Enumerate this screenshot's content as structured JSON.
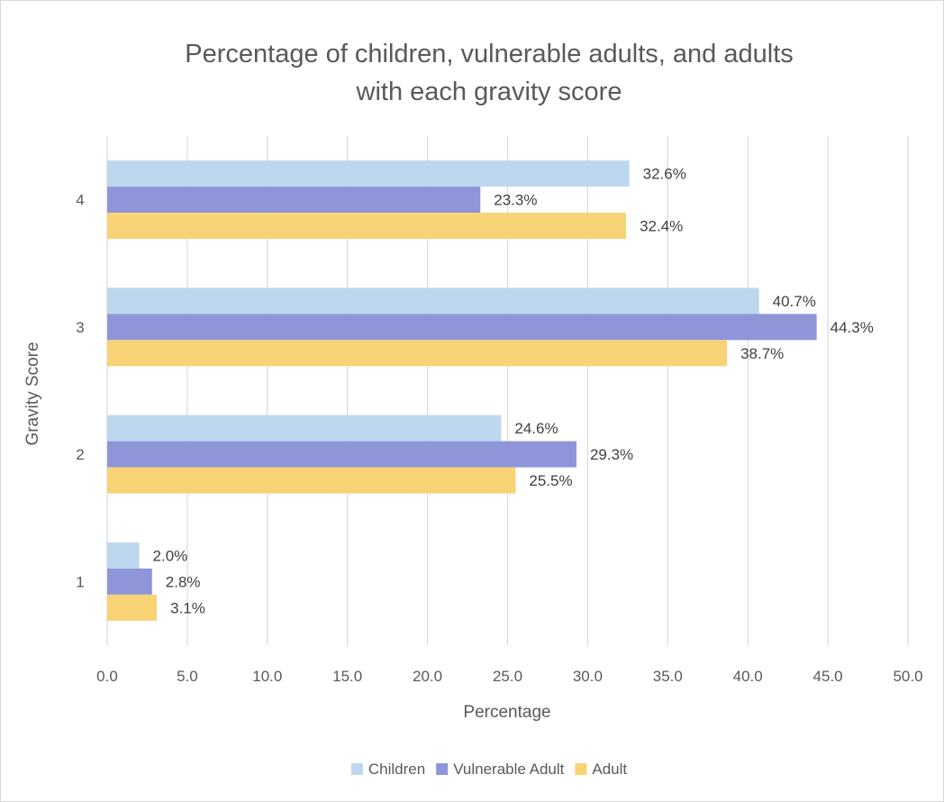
{
  "chart_data": {
    "type": "bar",
    "orientation": "horizontal",
    "title": "Percentage of children, vulnerable adults, and adults with each gravity score",
    "title_lines": [
      "Percentage of children, vulnerable adults, and adults",
      "with each gravity score"
    ],
    "xlabel": "Percentage",
    "ylabel": "Gravity Score",
    "categories": [
      "1",
      "2",
      "3",
      "4"
    ],
    "xlim": [
      0,
      50
    ],
    "x_ticks": [
      "0.0",
      "5.0",
      "10.0",
      "15.0",
      "20.0",
      "25.0",
      "30.0",
      "35.0",
      "40.0",
      "45.0",
      "50.0"
    ],
    "grid": "vertical",
    "legend_position": "bottom",
    "series": [
      {
        "name": "Children",
        "color": "#bdd7ee",
        "values": [
          2.0,
          24.6,
          40.7,
          32.6
        ],
        "labels": [
          "2.0%",
          "24.6%",
          "40.7%",
          "32.6%"
        ]
      },
      {
        "name": "Vulnerable Adult",
        "color": "#8e95d9",
        "values": [
          2.8,
          29.3,
          44.3,
          23.3
        ],
        "labels": [
          "2.8%",
          "29.3%",
          "44.3%",
          "23.3%"
        ]
      },
      {
        "name": "Adult",
        "color": "#f7d375",
        "values": [
          3.1,
          25.5,
          38.7,
          32.4
        ],
        "labels": [
          "3.1%",
          "25.5%",
          "38.7%",
          "32.4%"
        ]
      }
    ]
  }
}
